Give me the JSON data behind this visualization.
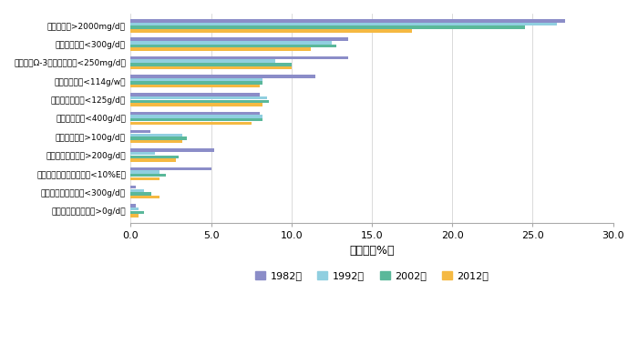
{
  "categories": [
    "高钓摄入（>2000mg/d）",
    "低水果摄入（<300g/d）",
    "低水产类Ω-3脂肪酸摄入（<250mg/d）",
    "低坚果摄入（<114g/w）",
    "低全谷物摄入（<125g/d）",
    "低蔬菜摄入（<400g/d）",
    "高红肉摄入（>100g/d）",
    "高精制谷物摄入（>200g/d）",
    "低多不饱和脂肪酸摄入（<10%E）",
    "低低脂奶制品摄入（<300g/d）",
    "高加工肉制品摄入（>0g/d）"
  ],
  "series": {
    "1982年": [
      27.0,
      13.5,
      13.5,
      11.5,
      8.0,
      8.0,
      1.2,
      5.2,
      5.0,
      0.3,
      0.3
    ],
    "1992年": [
      26.5,
      12.5,
      9.0,
      8.2,
      8.5,
      8.2,
      3.2,
      1.5,
      1.8,
      0.8,
      0.5
    ],
    "2002年": [
      24.5,
      12.8,
      10.0,
      8.2,
      8.6,
      8.2,
      3.5,
      3.0,
      2.2,
      1.3,
      0.8
    ],
    "2012年": [
      17.5,
      11.2,
      10.0,
      8.0,
      8.2,
      7.5,
      3.2,
      2.8,
      1.8,
      1.8,
      0.5
    ]
  },
  "colors": {
    "1982年": "#8b8dc8",
    "1992年": "#90cfe0",
    "2002年": "#5ab89a",
    "2012年": "#f5b942"
  },
  "xlabel": "百分比（%）",
  "xlim": [
    0,
    30
  ],
  "xticks": [
    0.0,
    5.0,
    10.0,
    15.0,
    20.0,
    25.0,
    30.0
  ],
  "legend_order": [
    "1982年",
    "1992年",
    "2002年",
    "2012年"
  ],
  "bar_height": 0.17,
  "bar_gap": 0.01
}
